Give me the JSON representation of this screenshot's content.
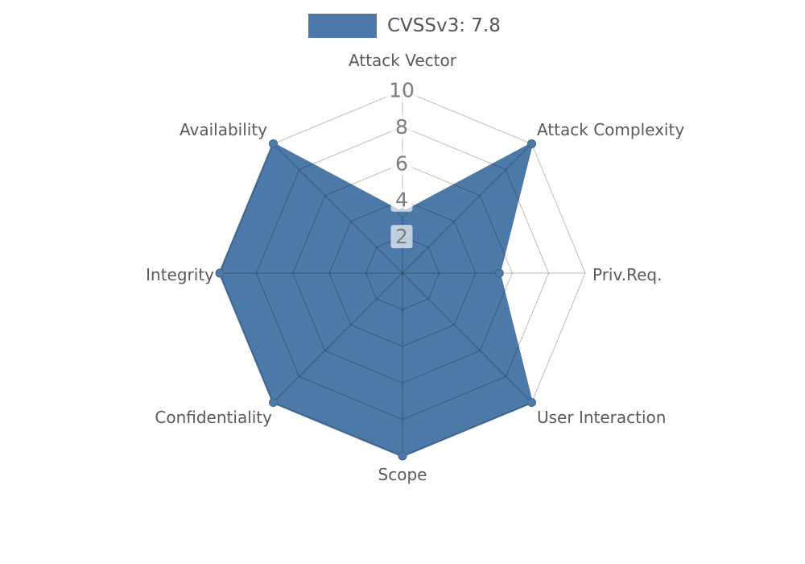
{
  "page": {
    "background": "#ffffff"
  },
  "legend": {
    "label": "CVSSv3: 7.8"
  },
  "chart_data": {
    "type": "radar",
    "title": "",
    "axes": [
      "Attack Vector",
      "Attack Complexity",
      "Priv.Req.",
      "User Interaction",
      "Scope",
      "Confidentiality",
      "Integrity",
      "Availability"
    ],
    "series": [
      {
        "name": "CVSSv3: 7.8",
        "color": "#4d79a8",
        "values": [
          3.3,
          10,
          5.3,
          10,
          10,
          10,
          10,
          10
        ]
      }
    ],
    "radial_ticks": [
      2,
      4,
      6,
      8,
      10
    ],
    "range": [
      0,
      10
    ],
    "grid": "spider-web-polygon",
    "start_axis": "top",
    "direction": "clockwise",
    "legend_position": "top-center",
    "colors": {
      "series_fill": "#4d79a8",
      "marker_edge": "#3e678f",
      "grid_line": "rgba(0,0,0,0.22)",
      "axis_label": "#5a5a5a",
      "tick_label": "#7c7c7c",
      "tick_box": "rgba(255,255,255,0.66)",
      "legend_text": "#555555"
    }
  }
}
